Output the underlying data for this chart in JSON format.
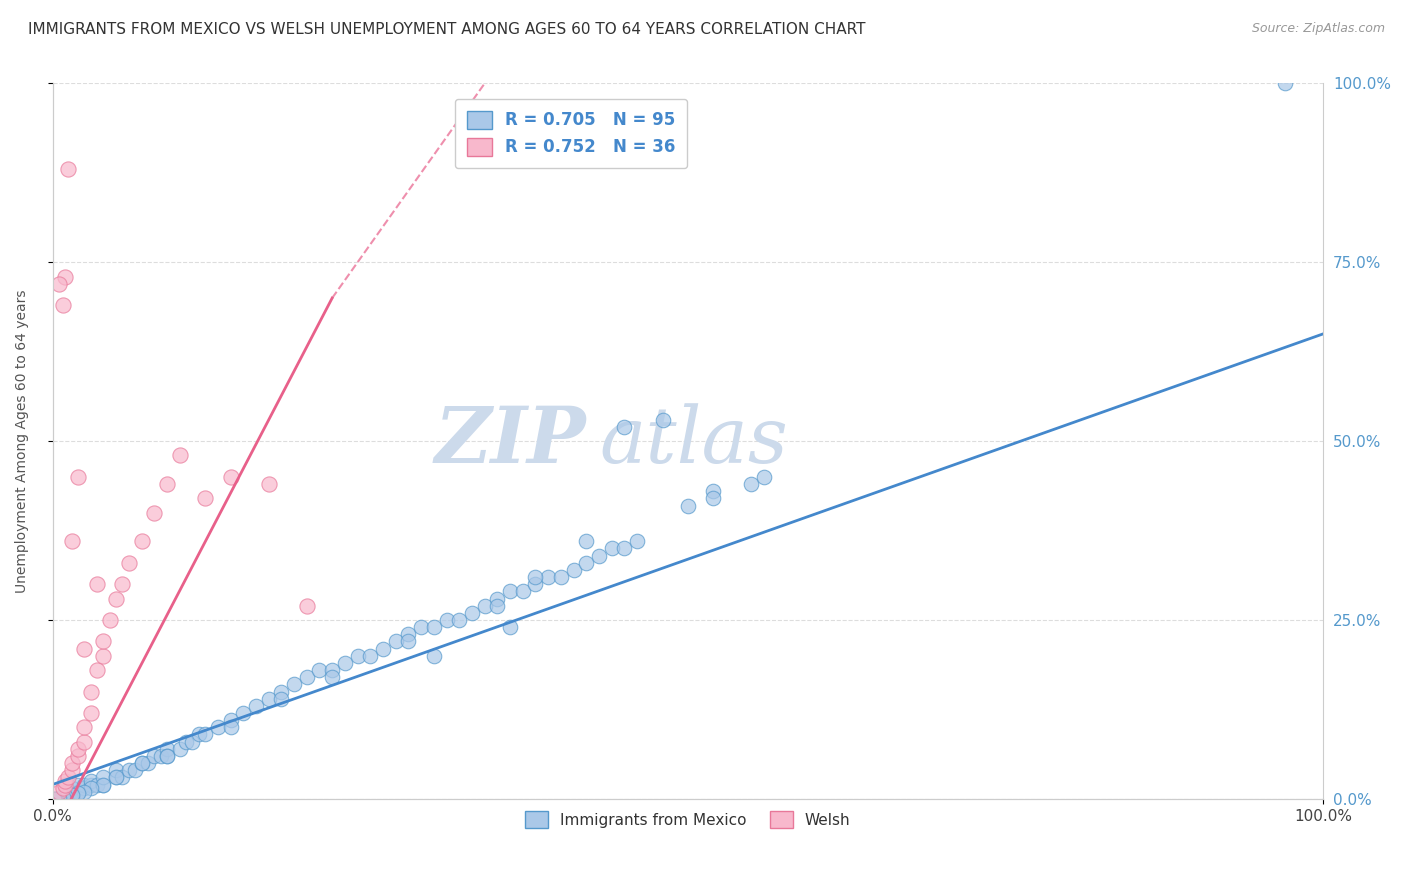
{
  "title": "IMMIGRANTS FROM MEXICO VS WELSH UNEMPLOYMENT AMONG AGES 60 TO 64 YEARS CORRELATION CHART",
  "source": "Source: ZipAtlas.com",
  "ylabel": "Unemployment Among Ages 60 to 64 years",
  "xlim": [
    0,
    1
  ],
  "ylim": [
    0,
    1
  ],
  "xtick_labels": [
    "0.0%",
    "100.0%"
  ],
  "ytick_labels": [
    "0.0%",
    "25.0%",
    "50.0%",
    "75.0%",
    "100.0%"
  ],
  "ytick_values": [
    0,
    0.25,
    0.5,
    0.75,
    1.0
  ],
  "legend_labels": [
    "R = 0.705   N = 95",
    "R = 0.752   N = 36"
  ],
  "legend_bottom_labels": [
    "Immigrants from Mexico",
    "Welsh"
  ],
  "blue_face_color": "#aac8e8",
  "blue_edge_color": "#5599cc",
  "pink_face_color": "#f8b8cc",
  "pink_edge_color": "#e87899",
  "blue_line_color": "#4488cc",
  "pink_line_color": "#e8608a",
  "watermark_color": "#ccdaeb",
  "title_color": "#333333",
  "source_color": "#999999",
  "ylabel_color": "#555555",
  "tick_color": "#444444",
  "right_tick_color": "#5599cc",
  "grid_color": "#dddddd",
  "background_color": "#ffffff",
  "title_fontsize": 11,
  "mexico_x": [
    0.97,
    0.005,
    0.01,
    0.015,
    0.015,
    0.02,
    0.02,
    0.025,
    0.025,
    0.03,
    0.03,
    0.035,
    0.04,
    0.04,
    0.05,
    0.05,
    0.055,
    0.06,
    0.065,
    0.07,
    0.075,
    0.08,
    0.085,
    0.09,
    0.09,
    0.1,
    0.105,
    0.11,
    0.115,
    0.12,
    0.13,
    0.14,
    0.15,
    0.16,
    0.17,
    0.18,
    0.19,
    0.2,
    0.21,
    0.22,
    0.23,
    0.24,
    0.25,
    0.26,
    0.27,
    0.28,
    0.29,
    0.3,
    0.31,
    0.32,
    0.33,
    0.34,
    0.35,
    0.36,
    0.37,
    0.38,
    0.39,
    0.4,
    0.41,
    0.42,
    0.43,
    0.44,
    0.45,
    0.46,
    0.5,
    0.52,
    0.55,
    0.36,
    0.42,
    0.52,
    0.56,
    0.3,
    0.35,
    0.38,
    0.22,
    0.28,
    0.18,
    0.14,
    0.09,
    0.07,
    0.05,
    0.04,
    0.03,
    0.025,
    0.02,
    0.015,
    0.01,
    0.008,
    0.005,
    0.003,
    0.002,
    0.001,
    0.001,
    0.45,
    0.48
  ],
  "mexico_y": [
    1.0,
    0.0,
    0.01,
    0.005,
    0.015,
    0.01,
    0.02,
    0.015,
    0.02,
    0.02,
    0.025,
    0.02,
    0.02,
    0.03,
    0.03,
    0.04,
    0.03,
    0.04,
    0.04,
    0.05,
    0.05,
    0.06,
    0.06,
    0.07,
    0.06,
    0.07,
    0.08,
    0.08,
    0.09,
    0.09,
    0.1,
    0.11,
    0.12,
    0.13,
    0.14,
    0.15,
    0.16,
    0.17,
    0.18,
    0.18,
    0.19,
    0.2,
    0.2,
    0.21,
    0.22,
    0.23,
    0.24,
    0.24,
    0.25,
    0.25,
    0.26,
    0.27,
    0.28,
    0.29,
    0.29,
    0.3,
    0.31,
    0.31,
    0.32,
    0.33,
    0.34,
    0.35,
    0.35,
    0.36,
    0.41,
    0.43,
    0.44,
    0.24,
    0.36,
    0.42,
    0.45,
    0.2,
    0.27,
    0.31,
    0.17,
    0.22,
    0.14,
    0.1,
    0.06,
    0.05,
    0.03,
    0.02,
    0.015,
    0.01,
    0.008,
    0.006,
    0.004,
    0.002,
    0.001,
    0.0,
    0.0,
    0.0,
    0.0,
    0.52,
    0.53
  ],
  "welsh_x": [
    0.005,
    0.008,
    0.01,
    0.01,
    0.012,
    0.015,
    0.015,
    0.02,
    0.02,
    0.025,
    0.025,
    0.03,
    0.03,
    0.035,
    0.04,
    0.04,
    0.045,
    0.05,
    0.055,
    0.06,
    0.07,
    0.08,
    0.09,
    0.1,
    0.12,
    0.14,
    0.17,
    0.2,
    0.02,
    0.01,
    0.015,
    0.025,
    0.035,
    0.005,
    0.008,
    0.012
  ],
  "welsh_y": [
    0.01,
    0.015,
    0.02,
    0.025,
    0.03,
    0.04,
    0.05,
    0.06,
    0.07,
    0.08,
    0.1,
    0.12,
    0.15,
    0.18,
    0.2,
    0.22,
    0.25,
    0.28,
    0.3,
    0.33,
    0.36,
    0.4,
    0.44,
    0.48,
    0.42,
    0.45,
    0.44,
    0.27,
    0.45,
    0.73,
    0.36,
    0.21,
    0.3,
    0.72,
    0.69,
    0.88
  ],
  "blue_trendline": [
    0.0,
    0.02,
    1.0,
    0.65
  ],
  "pink_trendline_solid": [
    0.0,
    -0.05,
    0.22,
    0.7
  ],
  "pink_trendline_dashed": [
    0.22,
    0.7,
    0.38,
    1.1
  ]
}
